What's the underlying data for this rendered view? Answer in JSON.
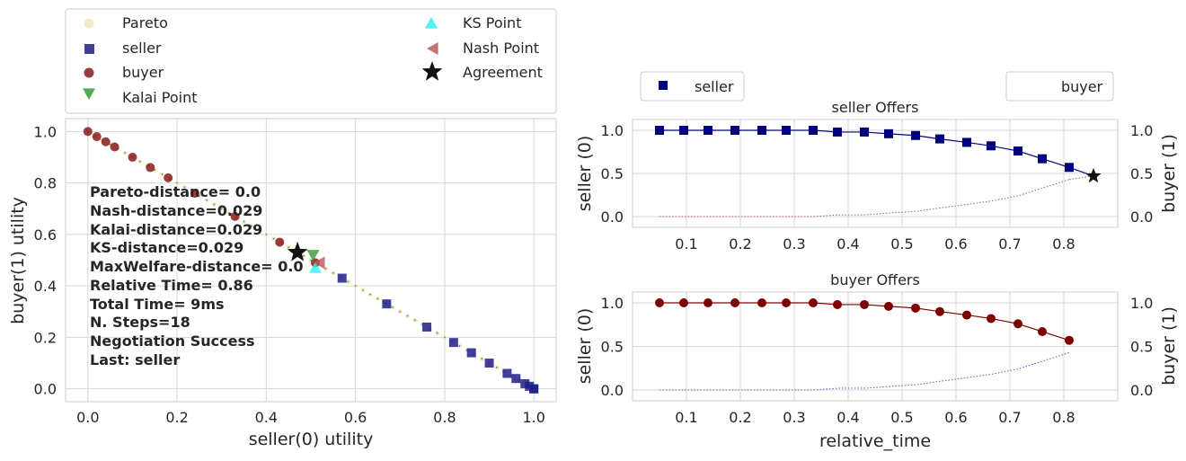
{
  "chart_data": [
    {
      "type": "scatter",
      "xlabel": "seller(0) utility",
      "ylabel": "buyer(1) utility",
      "xlim": [
        -0.05,
        1.05
      ],
      "ylim": [
        -0.05,
        1.05
      ],
      "xticks": [
        "0.0",
        "0.2",
        "0.4",
        "0.6",
        "0.8",
        "1.0"
      ],
      "yticks": [
        "0.0",
        "0.2",
        "0.4",
        "0.6",
        "0.8",
        "1.0"
      ],
      "grid": true,
      "legend": {
        "placement": "above",
        "entries": [
          "Pareto",
          "seller",
          "buyer",
          "Kalai Point",
          "KS Point",
          "Nash Point",
          "Agreement"
        ]
      },
      "colors": {
        "pareto": "#f0ecc8",
        "seller": "#1f1f8a",
        "buyer": "#8b1a1a",
        "kalai": "#3a9a3a",
        "ks": "#33f0f0",
        "nash": "#b85a5a",
        "agreement": "#111111"
      },
      "series": [
        {
          "name": "seller",
          "x": [
            0.57,
            0.67,
            0.76,
            0.82,
            0.86,
            0.9,
            0.94,
            0.96,
            0.98,
            0.99,
            1.0,
            1.0
          ],
          "y": [
            0.43,
            0.33,
            0.24,
            0.18,
            0.14,
            0.1,
            0.06,
            0.04,
            0.02,
            0.01,
            0.0,
            0.0
          ]
        },
        {
          "name": "buyer",
          "x": [
            0.0,
            0.02,
            0.04,
            0.06,
            0.1,
            0.14,
            0.18,
            0.24,
            0.33,
            0.43,
            0.51
          ],
          "y": [
            1.0,
            0.98,
            0.96,
            0.94,
            0.9,
            0.86,
            0.82,
            0.76,
            0.67,
            0.57,
            0.49
          ]
        },
        {
          "name": "Kalai Point",
          "x": [
            0.505
          ],
          "y": [
            0.52
          ]
        },
        {
          "name": "KS Point",
          "x": [
            0.51
          ],
          "y": [
            0.47
          ]
        },
        {
          "name": "Nash Point",
          "x": [
            0.52
          ],
          "y": [
            0.49
          ]
        },
        {
          "name": "Agreement",
          "x": [
            0.47
          ],
          "y": [
            0.53
          ]
        }
      ],
      "annotations": [
        "Pareto-distance=  0.0",
        "Nash-distance=0.029",
        "Kalai-distance=0.029",
        "KS-distance=0.029",
        "MaxWelfare-distance=  0.0",
        "Relative Time= 0.86",
        "Total Time= 9ms",
        "N. Steps=18",
        "Negotiation Success",
        "Last: seller"
      ]
    },
    {
      "type": "line",
      "title": "seller Offers",
      "ylabel_left": "seller (0)",
      "ylabel_right": "buyer (1)",
      "xlim": [
        0,
        0.9
      ],
      "ylim": [
        0,
        1
      ],
      "xticks": [
        "0.1",
        "0.2",
        "0.3",
        "0.4",
        "0.5",
        "0.6",
        "0.7",
        "0.8"
      ],
      "yticks": [
        "0.0",
        "0.5",
        "1.0"
      ],
      "legend": [
        "seller",
        "buyer"
      ],
      "x": [
        0.05,
        0.095,
        0.14,
        0.19,
        0.24,
        0.285,
        0.335,
        0.38,
        0.43,
        0.475,
        0.525,
        0.57,
        0.62,
        0.665,
        0.715,
        0.76,
        0.81
      ],
      "series": [
        {
          "name": "seller",
          "color": "#00007f",
          "values": [
            1.0,
            1.0,
            1.0,
            1.0,
            1.0,
            1.0,
            1.0,
            0.98,
            0.98,
            0.96,
            0.94,
            0.9,
            0.86,
            0.82,
            0.76,
            0.67,
            0.57
          ]
        },
        {
          "name": "buyer",
          "color": "#b05a5a",
          "values": [
            0.0,
            0.0,
            0.0,
            0.0,
            0.0,
            0.0,
            0.0,
            0.02,
            0.02,
            0.04,
            0.06,
            0.1,
            0.14,
            0.18,
            0.24,
            0.33,
            0.43
          ]
        }
      ],
      "agreement": {
        "x": 0.855,
        "y": 0.47
      }
    },
    {
      "type": "line",
      "title": "buyer Offers",
      "xlabel": "relative_time",
      "ylabel_left": "seller (0)",
      "ylabel_right": "buyer (1)",
      "xlim": [
        0,
        0.9
      ],
      "ylim": [
        0,
        1
      ],
      "xticks": [
        "0.1",
        "0.2",
        "0.3",
        "0.4",
        "0.5",
        "0.6",
        "0.7",
        "0.8"
      ],
      "yticks": [
        "0.0",
        "0.5",
        "1.0"
      ],
      "x": [
        0.05,
        0.095,
        0.14,
        0.19,
        0.24,
        0.285,
        0.335,
        0.38,
        0.43,
        0.475,
        0.525,
        0.57,
        0.62,
        0.665,
        0.715,
        0.76,
        0.81
      ],
      "series": [
        {
          "name": "buyer",
          "color": "#7f0000",
          "values": [
            1.0,
            1.0,
            1.0,
            1.0,
            1.0,
            1.0,
            1.0,
            0.98,
            0.98,
            0.96,
            0.94,
            0.9,
            0.86,
            0.82,
            0.76,
            0.67,
            0.57
          ]
        },
        {
          "name": "seller",
          "color": "#5a5ab0",
          "values": [
            0.0,
            0.0,
            0.0,
            0.0,
            0.0,
            0.0,
            0.0,
            0.02,
            0.02,
            0.04,
            0.06,
            0.1,
            0.14,
            0.18,
            0.24,
            0.33,
            0.43
          ]
        }
      ]
    }
  ]
}
